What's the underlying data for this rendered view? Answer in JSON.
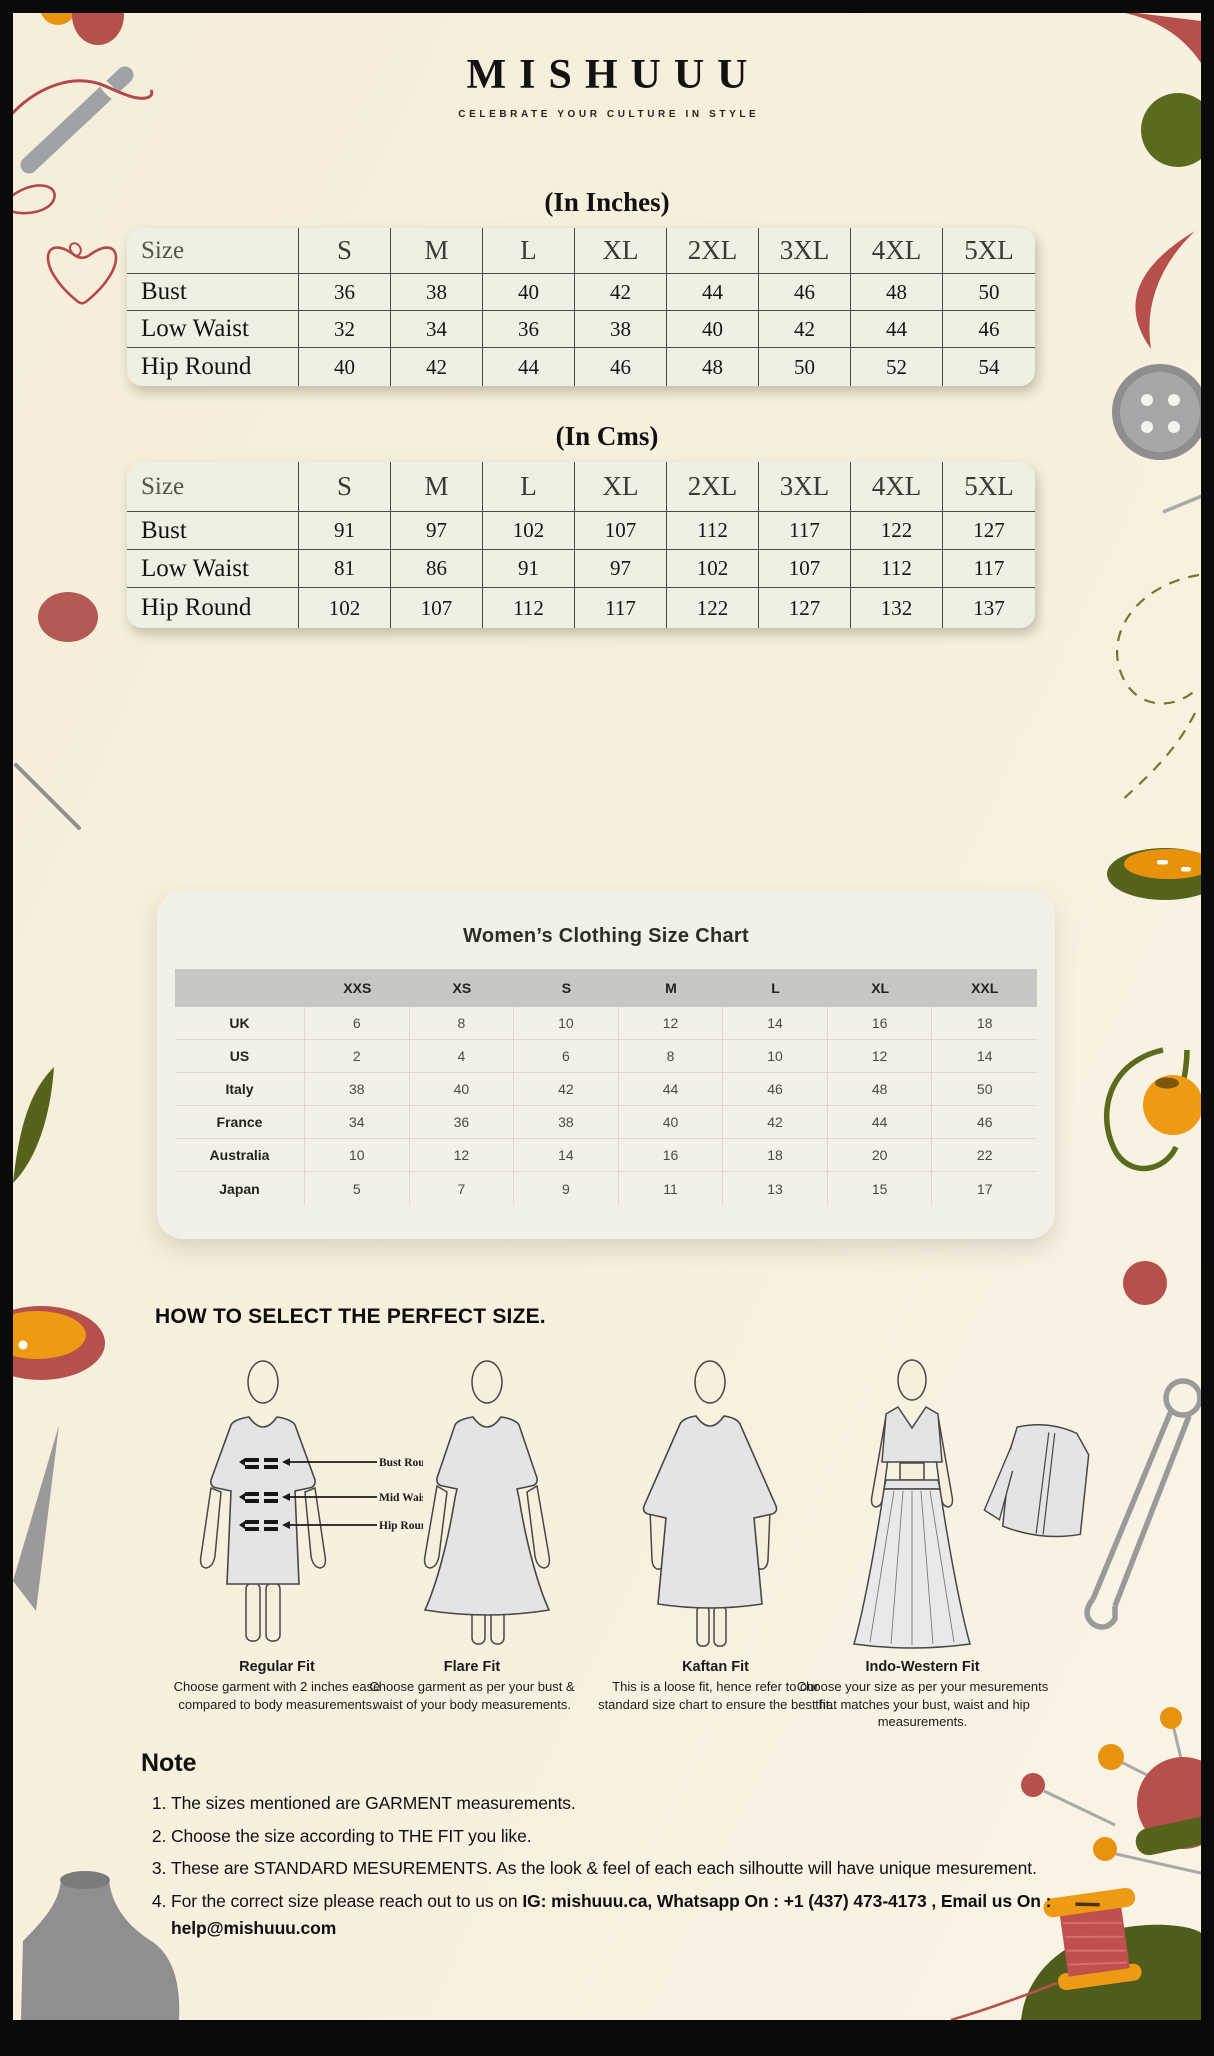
{
  "header": {
    "brand": "MISHUUU",
    "tagline": "CELEBRATE YOUR CULTURE IN STYLE"
  },
  "inches_table": {
    "title": "(In Inches)",
    "header": [
      "Size",
      "S",
      "M",
      "L",
      "XL",
      "2XL",
      "3XL",
      "4XL",
      "5XL"
    ],
    "rows": [
      {
        "label": "Bust",
        "values": [
          "36",
          "38",
          "40",
          "42",
          "44",
          "46",
          "48",
          "50"
        ]
      },
      {
        "label": "Low Waist",
        "values": [
          "32",
          "34",
          "36",
          "38",
          "40",
          "42",
          "44",
          "46"
        ]
      },
      {
        "label": "Hip Round",
        "values": [
          "40",
          "42",
          "44",
          "46",
          "48",
          "50",
          "52",
          "54"
        ]
      }
    ]
  },
  "cms_table": {
    "title": "(In Cms)",
    "header": [
      "Size",
      "S",
      "M",
      "L",
      "XL",
      "2XL",
      "3XL",
      "4XL",
      "5XL"
    ],
    "rows": [
      {
        "label": "Bust",
        "values": [
          "91",
          "97",
          "102",
          "107",
          "112",
          "117",
          "122",
          "127"
        ]
      },
      {
        "label": "Low Waist",
        "values": [
          "81",
          "86",
          "91",
          "97",
          "102",
          "107",
          "112",
          "117"
        ]
      },
      {
        "label": "Hip Round",
        "values": [
          "102",
          "107",
          "112",
          "117",
          "122",
          "127",
          "132",
          "137"
        ]
      }
    ]
  },
  "womens_chart": {
    "title": "Women’s Clothing Size Chart",
    "columns": [
      "XXS",
      "XS",
      "S",
      "M",
      "L",
      "XL",
      "XXL"
    ],
    "rows": [
      {
        "label": "UK",
        "values": [
          "6",
          "8",
          "10",
          "12",
          "14",
          "16",
          "18"
        ]
      },
      {
        "label": "US",
        "values": [
          "2",
          "4",
          "6",
          "8",
          "10",
          "12",
          "14"
        ]
      },
      {
        "label": "Italy",
        "values": [
          "38",
          "40",
          "42",
          "44",
          "46",
          "48",
          "50"
        ]
      },
      {
        "label": "France",
        "values": [
          "34",
          "36",
          "38",
          "40",
          "42",
          "44",
          "46"
        ]
      },
      {
        "label": "Australia",
        "values": [
          "10",
          "12",
          "14",
          "16",
          "18",
          "20",
          "22"
        ]
      },
      {
        "label": "Japan",
        "values": [
          "5",
          "7",
          "9",
          "11",
          "13",
          "15",
          "17"
        ]
      }
    ]
  },
  "fit_section": {
    "heading": "HOW TO SELECT THE PERFECT SIZE.",
    "annotations": [
      "Bust Round",
      "Mid Waist",
      "Hip Round"
    ],
    "fits": [
      {
        "name": "Regular Fit",
        "description": "Choose garment with 2 inches ease compared to body measurements."
      },
      {
        "name": "Flare Fit",
        "description": "Choose garment as per your bust & waist of your body measurements."
      },
      {
        "name": "Kaftan Fit",
        "description": "This is a loose fit, hence refer to our standard size chart to ensure the best fit."
      },
      {
        "name": "Indo-Western Fit",
        "description": "Choose your size as per your mesurements that matches your bust, waist and hip measurements."
      }
    ]
  },
  "note": {
    "heading": "Note",
    "items": [
      "The sizes mentioned are GARMENT measurements.",
      "Choose the size according to THE FIT you like.",
      "These are STANDARD MESUREMENTS. As the look & feel of each each silhoutte will have unique mesurement."
    ],
    "item4_prefix": "For the correct size please reach out to us on ",
    "item4_bold": "IG: mishuuu.ca, Whatsapp On : +1 (437) 473-4173 , Email us On : help@mishuuu.com"
  },
  "colors": {
    "cream": "#f6efdc",
    "red": "#b5504c",
    "orange": "#e8930f",
    "olive": "#5a6b1e",
    "gray": "#9a9a9a"
  }
}
